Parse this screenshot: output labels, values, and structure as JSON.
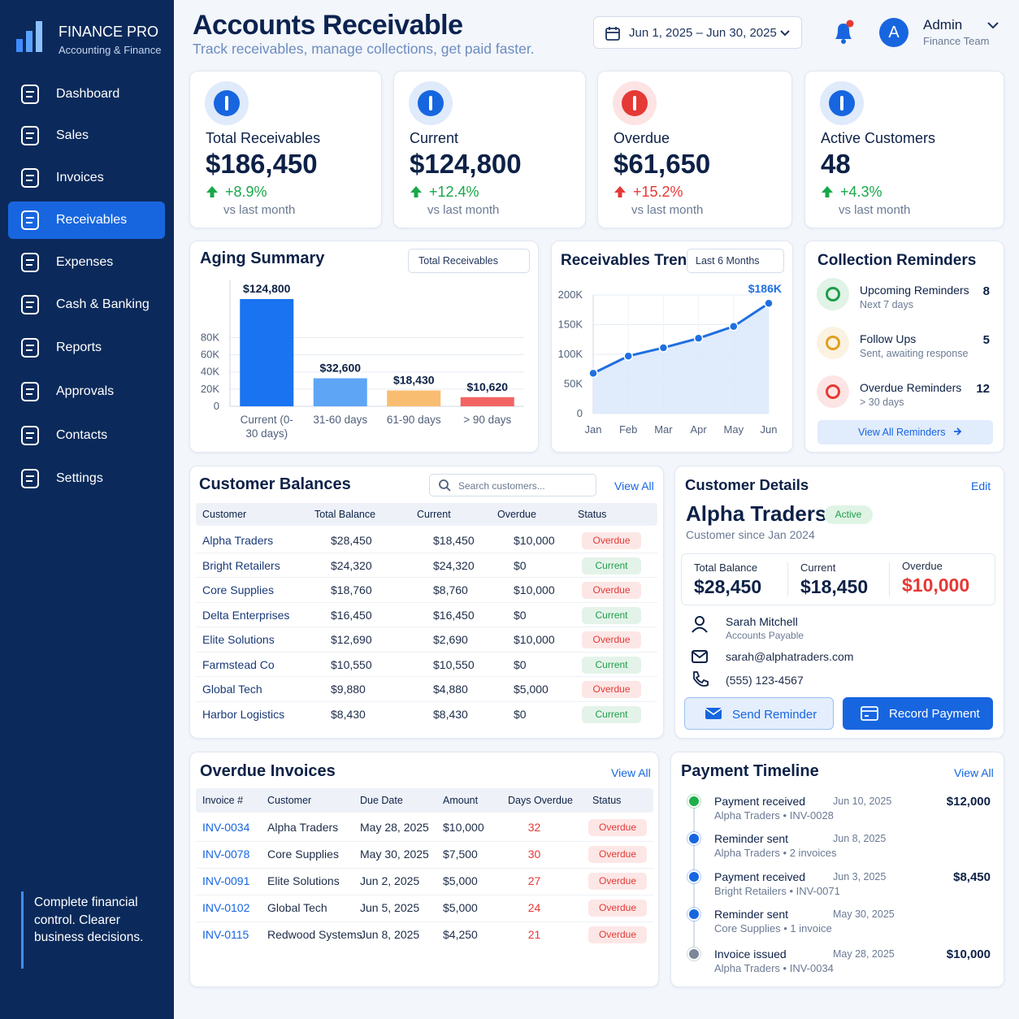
{
  "sidebar": {
    "brand": "FINANCE PRO",
    "tagline": "Accounting & Finance",
    "nav": [
      "Dashboard",
      "Sales",
      "Invoices",
      "Receivables",
      "Expenses",
      "Cash & Banking",
      "Reports",
      "Approvals",
      "Contacts",
      "Settings"
    ],
    "active": 3,
    "footer": "Complete financial control. Clearer business decisions."
  },
  "header": {
    "title": "Accounts Receivable",
    "subtitle": "Track receivables, manage collections, get paid faster.",
    "date_range": "Jun 1, 2025 – Jun 30, 2025",
    "avatar": "A",
    "user": "Admin",
    "role": "Finance Team"
  },
  "kpis": [
    {
      "label": "Total Receivables",
      "value": "$186,450",
      "change": "+8.9%",
      "note": "vs last month",
      "color": "#18a84a"
    },
    {
      "label": "Current",
      "value": "$124,800",
      "change": "+12.4%",
      "note": "vs last month",
      "color": "#18a84a"
    },
    {
      "label": "Overdue",
      "value": "$61,650",
      "change": "+15.2%",
      "note": "vs last month",
      "color": "#e53935"
    },
    {
      "label": "Active Customers",
      "value": "48",
      "change": "+4.3%",
      "note": "vs last month",
      "color": "#18a84a"
    }
  ],
  "aging": {
    "type": "bar",
    "title": "Aging Summary",
    "filter": "Total Receivables",
    "categories": [
      "Current (0-30 days)",
      "31-60 days",
      "61-90 days",
      "> 90 days"
    ],
    "values": [
      124800,
      32600,
      18430,
      10620
    ],
    "value_labels": [
      "$124,800",
      "$32,600",
      "$18,430",
      "$10,620"
    ],
    "colors": [
      "#1a73f0",
      "#5ea5f6",
      "#f9bd72",
      "#f26464"
    ],
    "ylim": [
      0,
      130000
    ],
    "yticks": [
      0,
      {
        "value": 20000,
        "label": "20K"
      },
      {
        "value": 40000,
        "label": "40K"
      },
      {
        "value": 60000,
        "label": "60K"
      },
      {
        "value": 80000,
        "label": "80K"
      }
    ]
  },
  "trend": {
    "type": "line",
    "title": "Receivables Trend",
    "filter": "Last 6 Months",
    "categories": [
      "Jan",
      "Feb",
      "Mar",
      "Apr",
      "May",
      "Jun"
    ],
    "values": [
      68000,
      97000,
      111000,
      127000,
      147000,
      186000
    ],
    "value_labels": [
      null,
      null,
      null,
      null,
      null,
      "$186K"
    ],
    "color": "#1f6fe0",
    "ylim": [
      0,
      200000
    ],
    "yticks": [
      0,
      {
        "value": 50000,
        "label": "50K"
      },
      {
        "value": 100000,
        "label": "100K"
      },
      {
        "value": 150000,
        "label": "150K"
      },
      {
        "value": 200000,
        "label": "200K"
      }
    ]
  },
  "reminders": {
    "title": "Collection Reminders",
    "button": "View All Reminders",
    "items": [
      {
        "title": "Upcoming Reminders",
        "sub": "Next 7 days",
        "count": 8,
        "color": "#1e9e4a"
      },
      {
        "title": "Follow Ups",
        "sub": "Sent, awaiting response",
        "count": 5,
        "color": "#e0a020"
      },
      {
        "title": "Overdue Reminders",
        "sub": "> 30 days",
        "count": 12,
        "color": "#e53935"
      }
    ]
  },
  "status_colors": {
    "Overdue": "#e53935",
    "Current": "#1e9e4a"
  },
  "balances": {
    "title": "Customer Balances",
    "search": "Search customers...",
    "link": "View All",
    "columns": [
      "Customer",
      "Total Balance",
      "Current",
      "Overdue",
      "Status"
    ],
    "rows": [
      [
        "Alpha Traders",
        "$28,450",
        "$18,450",
        "$10,000",
        "Overdue"
      ],
      [
        "Bright Retailers",
        "$24,320",
        "$24,320",
        "$0",
        "Current"
      ],
      [
        "Core Supplies",
        "$18,760",
        "$8,760",
        "$10,000",
        "Overdue"
      ],
      [
        "Delta Enterprises",
        "$16,450",
        "$16,450",
        "$0",
        "Current"
      ],
      [
        "Elite Solutions",
        "$12,690",
        "$2,690",
        "$10,000",
        "Overdue"
      ],
      [
        "Farmstead Co",
        "$10,550",
        "$10,550",
        "$0",
        "Current"
      ],
      [
        "Global Tech",
        "$9,880",
        "$4,880",
        "$5,000",
        "Overdue"
      ],
      [
        "Harbor Logistics",
        "$8,430",
        "$8,430",
        "$0",
        "Current"
      ]
    ]
  },
  "details": {
    "title": "Customer Details",
    "edit": "Edit",
    "name": "Alpha Traders",
    "badge": "Active",
    "since": "Customer since Jan 2024",
    "stats": [
      {
        "label": "Total Balance",
        "value": "$28,450"
      },
      {
        "label": "Current",
        "value": "$18,450"
      },
      {
        "label": "Overdue",
        "value": "$10,000"
      }
    ],
    "contact": {
      "name": "Sarah Mitchell",
      "role": "Accounts Payable",
      "email": "sarah@alphatraders.com",
      "phone": "(555) 123-4567"
    },
    "buttons": [
      "Send Reminder",
      "Record Payment"
    ]
  },
  "overdue": {
    "title": "Overdue Invoices",
    "link": "View All",
    "columns": [
      "Invoice #",
      "Customer",
      "Due Date",
      "Amount",
      "Days Overdue",
      "Status"
    ],
    "rows": [
      [
        "INV-0034",
        "Alpha Traders",
        "May 28, 2025",
        "$10,000",
        "32",
        "Overdue"
      ],
      [
        "INV-0078",
        "Core Supplies",
        "May 30, 2025",
        "$7,500",
        "30",
        "Overdue"
      ],
      [
        "INV-0091",
        "Elite Solutions",
        "Jun 2, 2025",
        "$5,000",
        "27",
        "Overdue"
      ],
      [
        "INV-0102",
        "Global Tech",
        "Jun 5, 2025",
        "$5,000",
        "24",
        "Overdue"
      ],
      [
        "INV-0115",
        "Redwood Systems",
        "Jun 8, 2025",
        "$4,250",
        "21",
        "Overdue"
      ]
    ]
  },
  "timeline": {
    "title": "Payment Timeline",
    "link": "View All",
    "items": [
      {
        "title": "Payment received",
        "date": "Jun 10, 2025",
        "sub": "Alpha Traders • INV-0028",
        "amount": "$12,000",
        "color": "#1eae4a"
      },
      {
        "title": "Reminder sent",
        "date": "Jun 8, 2025",
        "sub": "Alpha Traders • 2 invoices",
        "color": "#1766e0"
      },
      {
        "title": "Payment received",
        "date": "Jun 3, 2025",
        "sub": "Bright Retailers • INV-0071",
        "amount": "$8,450",
        "color": "#1766e0"
      },
      {
        "title": "Reminder sent",
        "date": "May 30, 2025",
        "sub": "Core Supplies • 1 invoice",
        "color": "#1766e0"
      },
      {
        "title": "Invoice issued",
        "date": "May 28, 2025",
        "sub": "Alpha Traders • INV-0034",
        "amount": "$10,000",
        "color": "#7b8799"
      }
    ]
  }
}
